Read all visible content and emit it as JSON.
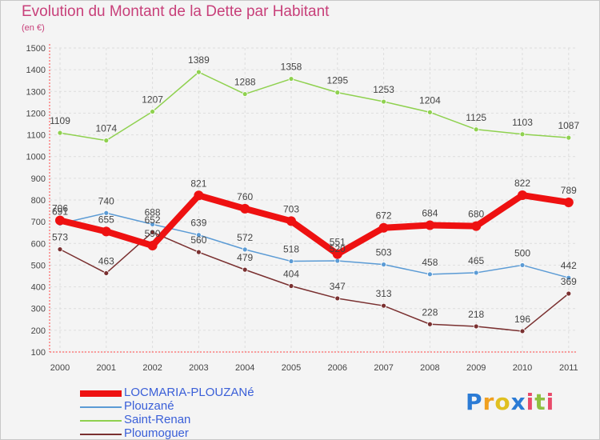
{
  "chart_data": {
    "type": "line",
    "title": "Evolution du Montant de la Dette par Habitant",
    "subtitle": "(en €)",
    "x": [
      "2000",
      "2001",
      "2002",
      "2003",
      "2004",
      "2005",
      "2006",
      "2007",
      "2008",
      "2009",
      "2010",
      "2011"
    ],
    "ylim": [
      100,
      1500
    ],
    "yticks": [
      100,
      200,
      300,
      400,
      500,
      600,
      700,
      800,
      900,
      1000,
      1100,
      1200,
      1300,
      1400,
      1500
    ],
    "grid": true,
    "legend_position": "bottom-left",
    "series": [
      {
        "name": "LOCMARIA-PLOUZANé",
        "color": "#ee1111",
        "values": [
          706,
          655,
          590,
          821,
          760,
          703,
          551,
          672,
          684,
          680,
          822,
          789
        ],
        "labels": [
          "706",
          "655",
          "590",
          "821",
          "760",
          "703",
          "551",
          "672",
          "684",
          "680",
          "822",
          "789"
        ]
      },
      {
        "name": "Plouzané",
        "color": "#5b9bd5",
        "values": [
          691,
          740,
          688,
          639,
          572,
          518,
          520,
          503,
          458,
          465,
          500,
          442
        ],
        "labels": [
          "691",
          "740",
          "688",
          "639",
          "572",
          "518",
          "520",
          "503",
          "458",
          "465",
          "500",
          "442"
        ]
      },
      {
        "name": "Saint-Renan",
        "color": "#8fd14f",
        "values": [
          1109,
          1074,
          1207,
          1389,
          1288,
          1358,
          1295,
          1253,
          1204,
          1125,
          1103,
          1087
        ],
        "labels": [
          "1109",
          "1074",
          "1207",
          "1389",
          "1288",
          "1358",
          "1295",
          "1253",
          "1204",
          "1125",
          "1103",
          "1087"
        ]
      },
      {
        "name": "Ploumoguer",
        "color": "#7a3030",
        "values": [
          573,
          463,
          652,
          560,
          479,
          404,
          347,
          313,
          228,
          218,
          196,
          369
        ],
        "labels": [
          "573",
          "463",
          "652",
          "560",
          "479",
          "404",
          "347",
          "313",
          "228",
          "218",
          "196",
          "369"
        ]
      }
    ]
  },
  "brand": {
    "name": "Proxiti",
    "letters": [
      {
        "ch": "P",
        "color": "#2b7bd5"
      },
      {
        "ch": "r",
        "color": "#f0a020"
      },
      {
        "ch": "o",
        "color": "#e0c020"
      },
      {
        "ch": "x",
        "color": "#2b7bd5"
      },
      {
        "ch": "i",
        "color": "#e84a6a"
      },
      {
        "ch": "t",
        "color": "#8fc040"
      },
      {
        "ch": "i",
        "color": "#e84a6a"
      }
    ]
  }
}
